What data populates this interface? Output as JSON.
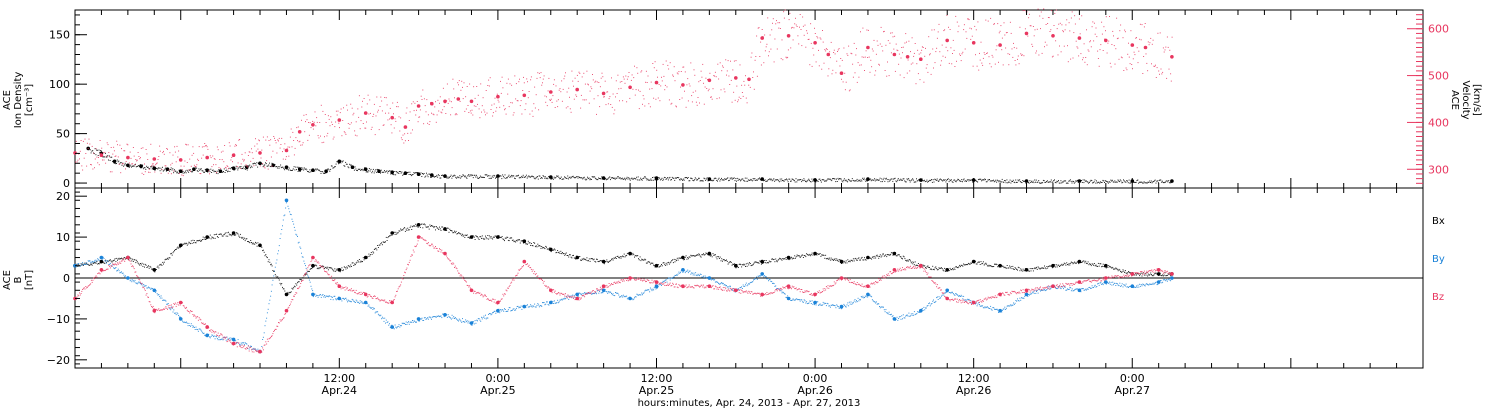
{
  "colors": {
    "black": "#000000",
    "pink": "#e8365f",
    "blue": "#1a82d8",
    "background": "#ffffff"
  },
  "x_axis": {
    "title": "hours:minutes, Apr. 24, 2013 - Apr. 27, 2013",
    "range_hours": [
      -8,
      94
    ],
    "ticks": [
      {
        "hours": 12,
        "time": "12:00",
        "date": "Apr.24"
      },
      {
        "hours": 24,
        "time": "0:00",
        "date": "Apr.25"
      },
      {
        "hours": 36,
        "time": "12:00",
        "date": "Apr.25"
      },
      {
        "hours": 48,
        "time": "0:00",
        "date": "Apr.26"
      },
      {
        "hours": 60,
        "time": "12:00",
        "date": "Apr.26"
      },
      {
        "hours": 72,
        "time": "0:00",
        "date": "Apr.27"
      }
    ]
  },
  "chart_data": [
    {
      "type": "scatter",
      "panel": "top",
      "left_axis": {
        "label_lines": [
          "ACE",
          "Ion Density",
          "[cm⁻³]"
        ],
        "ylim": [
          -5,
          175
        ],
        "ticks": [
          0,
          50,
          100,
          150
        ],
        "tick_labels": [
          "0",
          "50",
          "100",
          "150"
        ]
      },
      "right_axis": {
        "label_lines": [
          "ACE",
          "Velocity",
          "[km/s]"
        ],
        "ylim": [
          260,
          640
        ],
        "ticks": [
          300,
          400,
          500,
          600
        ],
        "tick_labels": [
          "300",
          "400",
          "500",
          "600"
        ]
      },
      "series": [
        {
          "axis": "left",
          "color": "#000000",
          "x_hours": [
            -7,
            -6,
            -5,
            -4,
            -3,
            -2,
            -1,
            0,
            1,
            2,
            3,
            4,
            5,
            6,
            7,
            8,
            9,
            10,
            11,
            12,
            13,
            14,
            15,
            16,
            17,
            18,
            19,
            20,
            24,
            28,
            32,
            36,
            40,
            44,
            48,
            52,
            56,
            60,
            64,
            68,
            72,
            75
          ],
          "values": [
            35,
            30,
            22,
            18,
            17,
            15,
            14,
            12,
            14,
            13,
            12,
            15,
            16,
            20,
            18,
            16,
            14,
            13,
            12,
            22,
            16,
            14,
            12,
            11,
            10,
            9,
            8,
            7,
            7,
            6,
            5,
            5,
            4,
            4,
            3,
            4,
            3,
            3,
            2,
            2,
            2,
            2
          ]
        },
        {
          "axis": "right",
          "color": "#e8365f",
          "x_hours": [
            -8,
            -6,
            -4,
            -2,
            0,
            2,
            4,
            6,
            8,
            9,
            10,
            12,
            14,
            16,
            17,
            18,
            19,
            20,
            21,
            22,
            24,
            26,
            28,
            30,
            32,
            34,
            36,
            38,
            40,
            42,
            43,
            44,
            46,
            48,
            49,
            50,
            52,
            54,
            55,
            56,
            58,
            60,
            62,
            64,
            66,
            68,
            70,
            72,
            73,
            75
          ],
          "values": [
            335,
            330,
            325,
            322,
            320,
            325,
            330,
            335,
            340,
            380,
            395,
            405,
            420,
            410,
            390,
            435,
            440,
            445,
            450,
            445,
            455,
            458,
            465,
            470,
            462,
            475,
            485,
            480,
            490,
            495,
            492,
            580,
            585,
            570,
            545,
            505,
            560,
            545,
            540,
            535,
            575,
            570,
            565,
            590,
            585,
            580,
            575,
            565,
            560,
            540
          ]
        }
      ]
    },
    {
      "type": "scatter",
      "panel": "bottom",
      "left_axis": {
        "label_lines": [
          "ACE",
          "B",
          "[nT]"
        ],
        "ylim": [
          -22,
          22
        ],
        "ticks": [
          -20,
          -10,
          0,
          10,
          20
        ],
        "tick_labels": [
          "−20",
          "−10",
          "0",
          "10",
          "20"
        ],
        "zero_line": true
      },
      "legend": [
        "Bx",
        "By",
        "Bz"
      ],
      "series": [
        {
          "name": "Bx",
          "color": "#000000",
          "x_hours": [
            -8,
            -6,
            -4,
            -2,
            0,
            2,
            4,
            6,
            8,
            10,
            12,
            14,
            16,
            18,
            20,
            22,
            24,
            26,
            28,
            30,
            32,
            34,
            36,
            38,
            40,
            42,
            44,
            46,
            48,
            50,
            52,
            54,
            56,
            58,
            60,
            62,
            64,
            66,
            68,
            70,
            72,
            74,
            75
          ],
          "values": [
            3,
            4,
            5,
            2,
            8,
            10,
            11,
            8,
            -4,
            3,
            2,
            5,
            11,
            13,
            12,
            10,
            10,
            9,
            7,
            5,
            4,
            6,
            3,
            5,
            6,
            3,
            4,
            5,
            6,
            4,
            5,
            6,
            3,
            2,
            4,
            3,
            2,
            3,
            4,
            3,
            1,
            1,
            1
          ]
        },
        {
          "name": "By",
          "color": "#1a82d8",
          "x_hours": [
            -8,
            -6,
            -4,
            -2,
            0,
            2,
            4,
            6,
            8,
            10,
            12,
            14,
            16,
            18,
            20,
            22,
            24,
            26,
            28,
            30,
            32,
            34,
            36,
            38,
            40,
            42,
            44,
            46,
            48,
            50,
            52,
            54,
            56,
            58,
            60,
            62,
            64,
            66,
            68,
            70,
            72,
            74,
            75
          ],
          "values": [
            3,
            5,
            0,
            -3,
            -10,
            -14,
            -15,
            -18,
            19,
            -4,
            -5,
            -6,
            -12,
            -10,
            -9,
            -11,
            -8,
            -7,
            -6,
            -4,
            -3,
            -5,
            -2,
            2,
            0,
            -3,
            1,
            -5,
            -6,
            -7,
            -4,
            -10,
            -8,
            -3,
            -6,
            -8,
            -4,
            -2,
            -3,
            -1,
            -2,
            -1,
            0
          ]
        },
        {
          "name": "Bz",
          "color": "#e8365f",
          "x_hours": [
            -8,
            -6,
            -4,
            -2,
            0,
            2,
            4,
            6,
            8,
            10,
            12,
            14,
            16,
            18,
            20,
            22,
            24,
            26,
            28,
            30,
            32,
            34,
            36,
            38,
            40,
            42,
            44,
            46,
            48,
            50,
            52,
            54,
            56,
            58,
            60,
            62,
            64,
            66,
            68,
            70,
            72,
            74,
            75
          ],
          "values": [
            -5,
            2,
            5,
            -8,
            -6,
            -12,
            -16,
            -18,
            -8,
            5,
            -2,
            -4,
            -6,
            10,
            6,
            -3,
            -6,
            4,
            -3,
            -5,
            -2,
            0,
            -1,
            -2,
            -2,
            -3,
            -4,
            -2,
            -4,
            0,
            -2,
            2,
            3,
            -5,
            -6,
            -4,
            -3,
            -2,
            -1,
            0,
            1,
            2,
            1
          ]
        }
      ]
    }
  ]
}
